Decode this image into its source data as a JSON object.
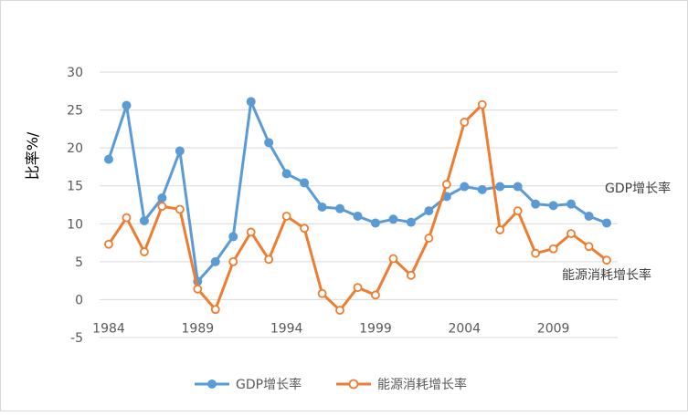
{
  "chart_data": {
    "type": "line",
    "title": "",
    "xlabel": "",
    "ylabel": "比率%/",
    "ylim": [
      -5,
      30
    ],
    "yticks": [
      30,
      25,
      20,
      15,
      10,
      5,
      0,
      -5
    ],
    "xticks": [
      1984,
      1989,
      1994,
      1999,
      2004,
      2009
    ],
    "xlim": [
      1984,
      2012
    ],
    "grid": true,
    "legend": "bottom",
    "x": [
      1984,
      1985,
      1986,
      1987,
      1988,
      1989,
      1990,
      1991,
      1992,
      1993,
      1994,
      1995,
      1996,
      1997,
      1998,
      1999,
      2000,
      2001,
      2002,
      2003,
      2004,
      2005,
      2006,
      2007,
      2008,
      2009,
      2010,
      2011,
      2012
    ],
    "series": [
      {
        "name": "GDP增长率",
        "color": "#5b9bd5",
        "marker": "filled-circle",
        "inline_label": "GDP增长率",
        "values": [
          18.5,
          25.6,
          10.4,
          13.4,
          19.6,
          2.4,
          5.0,
          8.3,
          26.1,
          20.7,
          16.6,
          15.4,
          12.2,
          12.0,
          11.0,
          10.1,
          10.6,
          10.2,
          11.7,
          13.6,
          14.9,
          14.5,
          14.9,
          14.9,
          12.6,
          12.4,
          12.6,
          11.0,
          10.1
        ]
      },
      {
        "name": "能源消耗增长率",
        "color": "#ed7d31",
        "marker": "hollow-circle",
        "inline_label": "能源消耗增长率",
        "values": [
          7.3,
          10.8,
          6.3,
          12.3,
          11.9,
          1.4,
          -1.3,
          5.0,
          8.9,
          5.3,
          11.0,
          9.4,
          0.8,
          -1.4,
          1.6,
          0.6,
          5.4,
          3.2,
          8.1,
          15.2,
          23.4,
          25.7,
          9.2,
          11.7,
          6.1,
          6.7,
          8.7,
          7.0,
          5.2
        ]
      }
    ]
  }
}
